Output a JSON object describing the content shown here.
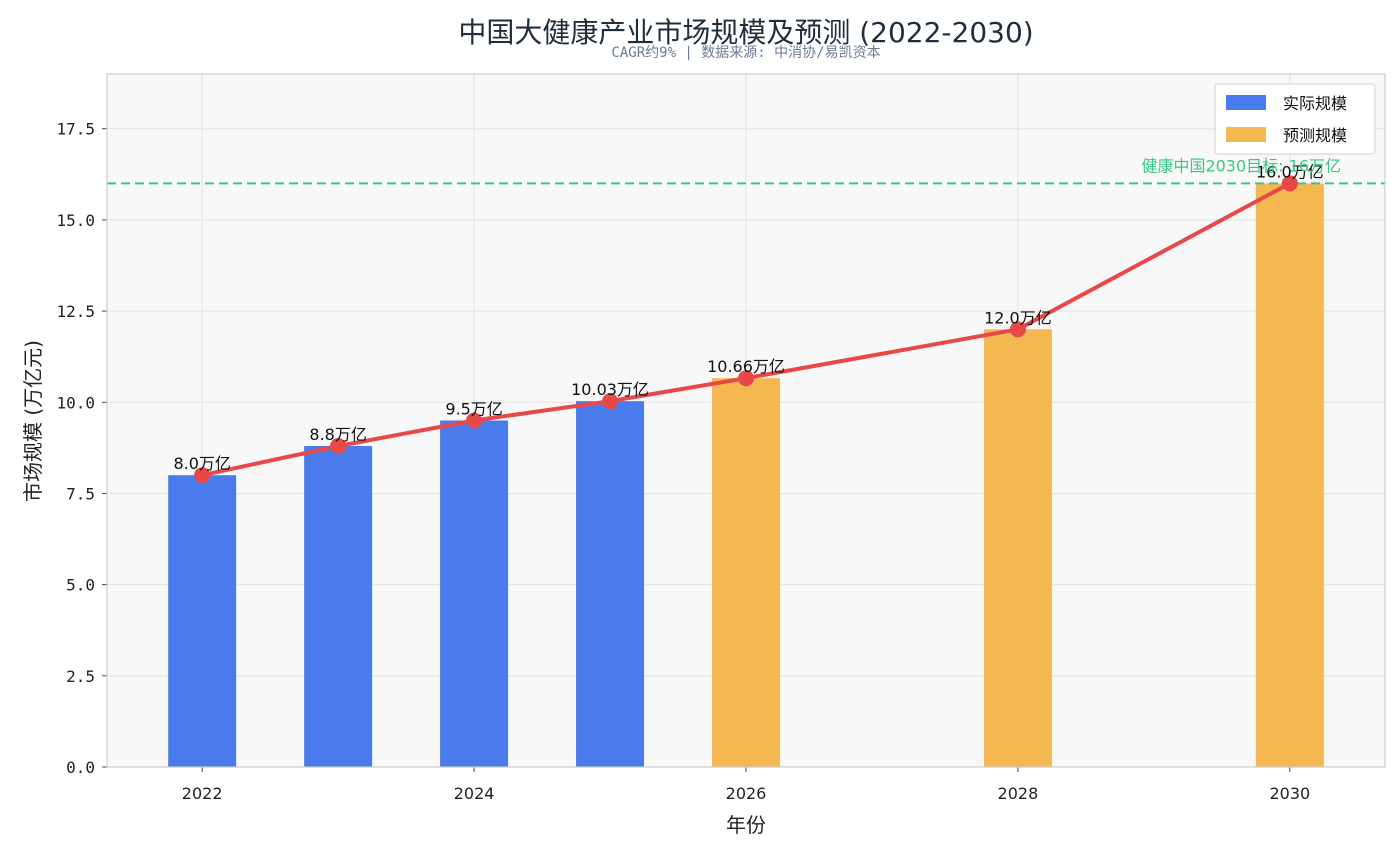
{
  "chart_data": {
    "type": "bar",
    "title": "中国大健康产业市场规模及预测 (2022-2030)",
    "subtitle": "CAGR约9% | 数据来源: 中消协/易凯资本",
    "xlabel": "年份",
    "ylabel": "市场规模 (万亿元)",
    "ylim": [
      0,
      19
    ],
    "xlim": [
      2021.3,
      2030.7
    ],
    "y_ticks": [
      "0.0",
      "2.5",
      "5.0",
      "7.5",
      "10.0",
      "12.5",
      "15.0",
      "17.5"
    ],
    "y_tick_values": [
      0,
      2.5,
      5,
      7.5,
      10,
      12.5,
      15,
      17.5
    ],
    "x_ticks": [
      "2022",
      "2024",
      "2026",
      "2028",
      "2030"
    ],
    "x_tick_values": [
      2022,
      2024,
      2026,
      2028,
      2030
    ],
    "grid": true,
    "legend_position": "top-right",
    "series": [
      {
        "name": "实际规模",
        "type": "bar",
        "color": "#4a7bec",
        "x": [
          2022,
          2023,
          2024,
          2025
        ],
        "values": [
          8.0,
          8.8,
          9.5,
          10.03
        ]
      },
      {
        "name": "预测规模",
        "type": "bar",
        "color": "#f5b750",
        "x": [
          2026,
          2028,
          2030
        ],
        "values": [
          10.66,
          12.0,
          16.0
        ]
      },
      {
        "type": "line",
        "color": "#e84848",
        "x": [
          2022,
          2023,
          2024,
          2025,
          2026,
          2028,
          2030
        ],
        "values": [
          8.0,
          8.8,
          9.5,
          10.03,
          10.66,
          12.0,
          16.0
        ]
      }
    ],
    "data_labels": [
      {
        "x": 2022,
        "y": 8.0,
        "text": "8.0万亿"
      },
      {
        "x": 2023,
        "y": 8.8,
        "text": "8.8万亿"
      },
      {
        "x": 2024,
        "y": 9.5,
        "text": "9.5万亿"
      },
      {
        "x": 2025,
        "y": 10.03,
        "text": "10.03万亿"
      },
      {
        "x": 2026,
        "y": 10.66,
        "text": "10.66万亿"
      },
      {
        "x": 2028,
        "y": 12.0,
        "text": "12.0万亿"
      },
      {
        "x": 2030,
        "y": 16.0,
        "text": "16.0万亿"
      }
    ],
    "reference_line": {
      "y": 16.0,
      "label": "健康中国2030目标: 16万亿",
      "color": "#3cc48a"
    }
  },
  "colors": {
    "plot_background": "#f8f8f8",
    "grid": "#e3e3e3",
    "axis": "#cccccc"
  }
}
